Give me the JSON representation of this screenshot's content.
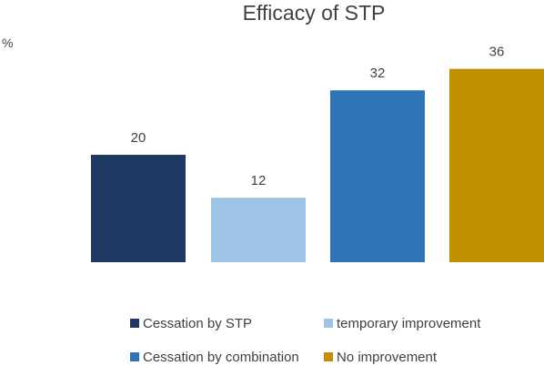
{
  "chart_data": {
    "type": "bar",
    "title": "Efficacy of STP",
    "ylabel": "%",
    "xlabel": "",
    "ylim": [
      0,
      40
    ],
    "grid": false,
    "legend_position": "bottom",
    "categories": [
      "Cessation by STP",
      "temporary improvement",
      "Cessation by combination",
      "No improvement"
    ],
    "values": [
      20,
      12,
      32,
      36
    ],
    "colors": [
      "#203864",
      "#9DC3E6",
      "#2E75B6",
      "#BF9000"
    ],
    "legend": [
      {
        "label": "Cessation by STP",
        "color": "#203864"
      },
      {
        "label": "temporary improvement",
        "color": "#9DC3E6"
      },
      {
        "label": "Cessation by combination",
        "color": "#2E75B6"
      },
      {
        "label": "No improvement",
        "color": "#BF9000"
      }
    ]
  }
}
